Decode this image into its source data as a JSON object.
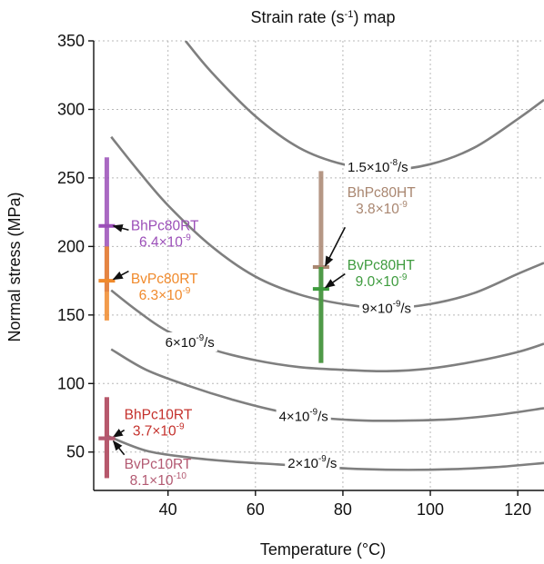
{
  "chart_data": {
    "type": "scatter",
    "title": "Strain rate (s-1) map",
    "title_parts": {
      "pre": "Strain rate (s",
      "sup": "-1",
      "post": ") map"
    },
    "xlabel": "Temperature (°C)",
    "ylabel": "Normal stress (MPa)",
    "xlim": [
      23,
      126
    ],
    "ylim": [
      22,
      350
    ],
    "xticks": [
      40,
      60,
      80,
      100,
      120
    ],
    "yticks": [
      50,
      100,
      150,
      200,
      250,
      300,
      350
    ],
    "grid": true,
    "contours": [
      {
        "label": "2×10-9/s",
        "label_parts": {
          "pre": "2×10",
          "sup": "-9",
          "post": "/s"
        },
        "label_at": {
          "x": 73,
          "y": 42
        },
        "points": [
          [
            26,
            62
          ],
          [
            35,
            51
          ],
          [
            45,
            46
          ],
          [
            55,
            43
          ],
          [
            65,
            41
          ],
          [
            75,
            39
          ],
          [
            85,
            37.5
          ],
          [
            95,
            37
          ],
          [
            105,
            37.5
          ],
          [
            115,
            39
          ],
          [
            126,
            42
          ]
        ]
      },
      {
        "label": "4×10-9/s",
        "label_parts": {
          "pre": "4×10",
          "sup": "-9",
          "post": "/s"
        },
        "label_at": {
          "x": 71,
          "y": 76
        },
        "points": [
          [
            27,
            125
          ],
          [
            35,
            110
          ],
          [
            45,
            98
          ],
          [
            55,
            88
          ],
          [
            65,
            80
          ],
          [
            75,
            75
          ],
          [
            85,
            73
          ],
          [
            95,
            73
          ],
          [
            105,
            74
          ],
          [
            115,
            77
          ],
          [
            126,
            82
          ]
        ]
      },
      {
        "label": "6×10-9/s",
        "label_parts": {
          "pre": "6×10",
          "sup": "-9",
          "post": "/s"
        },
        "label_at": {
          "x": 45,
          "y": 130
        },
        "points": [
          [
            27,
            168
          ],
          [
            33,
            153
          ],
          [
            40,
            138
          ],
          [
            50,
            125
          ],
          [
            60,
            117
          ],
          [
            70,
            112
          ],
          [
            80,
            110
          ],
          [
            90,
            109
          ],
          [
            100,
            111
          ],
          [
            110,
            116
          ],
          [
            120,
            123
          ],
          [
            126,
            129
          ]
        ]
      },
      {
        "label": "9×10-9/s",
        "label_parts": {
          "pre": "9×10",
          "sup": "-9",
          "post": "/s"
        },
        "label_at": {
          "x": 90,
          "y": 155
        },
        "points": [
          [
            27,
            280
          ],
          [
            33,
            256
          ],
          [
            40,
            230
          ],
          [
            50,
            200
          ],
          [
            60,
            178
          ],
          [
            70,
            165
          ],
          [
            80,
            158
          ],
          [
            90,
            155
          ],
          [
            100,
            158
          ],
          [
            110,
            166
          ],
          [
            120,
            180
          ],
          [
            126,
            188
          ]
        ]
      },
      {
        "label": "1.5×10-8/s",
        "label_parts": {
          "pre": "1.5×10",
          "sup": "-8",
          "post": "/s"
        },
        "label_at": {
          "x": 88,
          "y": 258
        },
        "points": [
          [
            44,
            350
          ],
          [
            50,
            327
          ],
          [
            60,
            295
          ],
          [
            70,
            272
          ],
          [
            80,
            260
          ],
          [
            90,
            256
          ],
          [
            100,
            260
          ],
          [
            110,
            272
          ],
          [
            120,
            293
          ],
          [
            126,
            307
          ]
        ]
      }
    ],
    "samples": [
      {
        "name": "BhPc80RT",
        "rate": "6.4×10-9",
        "rate_parts": {
          "pre": "6.4×10",
          "sup": "-9"
        },
        "color": "#9b4fb8",
        "x": 26,
        "y": 215,
        "range": [
          167,
          265
        ],
        "label_at": {
          "x": 31.5,
          "y": 212
        },
        "arrow_to": {
          "x": 27.5,
          "y": 215
        },
        "arrow_from": {
          "x": 31,
          "y": 212
        }
      },
      {
        "name": "BvPc80RT",
        "rate": "6.3×10-9",
        "rate_parts": {
          "pre": "6.3×10",
          "sup": "-9"
        },
        "color": "#f08a2c",
        "x": 26,
        "y": 175,
        "range": [
          146,
          200
        ],
        "label_at": {
          "x": 31.5,
          "y": 173
        },
        "arrow_to": {
          "x": 27.5,
          "y": 176
        },
        "arrow_from": {
          "x": 31,
          "y": 182
        }
      },
      {
        "name": "BhPc80HT",
        "rate": "3.8×10-9",
        "rate_parts": {
          "pre": "3.8×10",
          "sup": "-9"
        },
        "color": "#a98670",
        "x": 75,
        "y": 185,
        "range": [
          115,
          255
        ],
        "label_at": {
          "x": 81,
          "y": 236
        },
        "arrow_to": {
          "x": 76,
          "y": 186
        },
        "arrow_from": {
          "x": 80.5,
          "y": 214
        }
      },
      {
        "name": "BvPc80HT",
        "rate": "9.0×10-9",
        "rate_parts": {
          "pre": "9.0×10",
          "sup": "-9"
        },
        "color": "#3e9b3e",
        "x": 75,
        "y": 169,
        "range": [
          115,
          185
        ],
        "label_at": {
          "x": 81,
          "y": 183
        },
        "arrow_to": {
          "x": 76,
          "y": 170
        },
        "arrow_from": {
          "x": 80.5,
          "y": 180
        }
      },
      {
        "name": "BhPc10RT",
        "rate": "3.7×10-9",
        "rate_parts": {
          "pre": "3.7×10",
          "sup": "-9"
        },
        "color": "#c4302b",
        "x": 26,
        "y": 60,
        "range": [
          31,
          90
        ],
        "label_at": {
          "x": 30,
          "y": 74
        },
        "arrow_to": {
          "x": 27.5,
          "y": 61
        },
        "arrow_from": {
          "x": 30,
          "y": 66
        }
      },
      {
        "name": "BvPc10RT",
        "rate": "8.1×10-10",
        "rate_parts": {
          "pre": "8.1×10",
          "sup": "-10"
        },
        "color": "#b35a72",
        "x": 26,
        "y": 60,
        "range": [
          31,
          90
        ],
        "label_at": {
          "x": 30,
          "y": 38
        },
        "arrow_to": {
          "x": 27.5,
          "y": 58
        },
        "arrow_from": {
          "x": 30,
          "y": 48
        }
      }
    ]
  }
}
